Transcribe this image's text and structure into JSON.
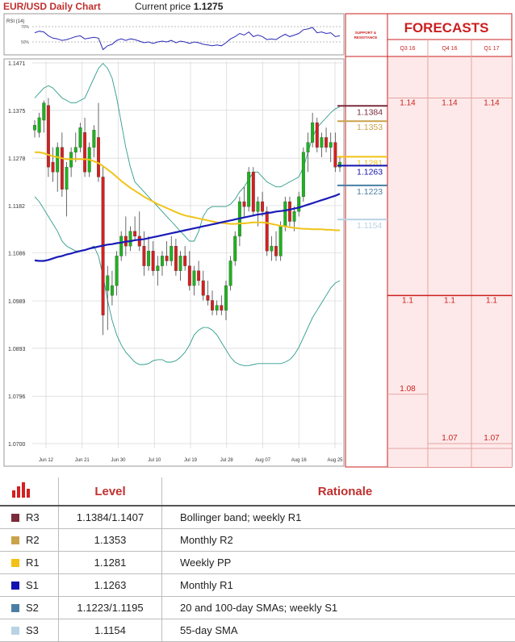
{
  "header": {
    "title": "EUR/USD Daily Chart",
    "current_price_label": "Current price",
    "current_price_value": "1.1275"
  },
  "rsi": {
    "label": "RSI (14)",
    "levels": [
      "70%",
      "50%"
    ]
  },
  "forecasts_panel": {
    "title": "FORECASTS",
    "sr_label_line1": "SUPPORT &",
    "sr_label_line2": "RESISTANCE",
    "quarters": [
      "Q3 16",
      "Q4 16",
      "Q1 17"
    ]
  },
  "colors": {
    "bullish": "#1db31d",
    "bearish": "#d42020",
    "sma_blue": "#1a1ab8",
    "sma_yellow": "#f0c419",
    "bollinger": "#2e9c8a",
    "forecast_red": "#cc1f1f",
    "r3": "#7b2b3a",
    "r2": "#c9a24a",
    "r1": "#f3c115",
    "s1": "#1212b0",
    "s2": "#4a7fa3",
    "s3": "#b9d3e6"
  },
  "chart_data": {
    "type": "candlestick",
    "title": "EUR/USD Daily Chart",
    "y_ticks": [
      "1.1471",
      "1.1375",
      "1.1278",
      "1.1182",
      "1.1086",
      "1.0989",
      "1.0893",
      "1.0796",
      "1.0700"
    ],
    "ylim": [
      1.07,
      1.1471
    ],
    "x_ticks": [
      "Jun 12",
      "Jun 21",
      "Jun 30",
      "Jul 10",
      "Jul 19",
      "Jul 28",
      "Aug 07",
      "Aug 16",
      "Aug 25"
    ],
    "candles": [
      {
        "o": 1.1335,
        "h": 1.1355,
        "l": 1.132,
        "c": 1.1345
      },
      {
        "o": 1.133,
        "h": 1.137,
        "l": 1.132,
        "c": 1.136
      },
      {
        "o": 1.1355,
        "h": 1.1395,
        "l": 1.133,
        "c": 1.139
      },
      {
        "o": 1.1385,
        "h": 1.14,
        "l": 1.124,
        "c": 1.126
      },
      {
        "o": 1.127,
        "h": 1.13,
        "l": 1.123,
        "c": 1.125
      },
      {
        "o": 1.125,
        "h": 1.131,
        "l": 1.121,
        "c": 1.13
      },
      {
        "o": 1.13,
        "h": 1.133,
        "l": 1.12,
        "c": 1.1215
      },
      {
        "o": 1.1215,
        "h": 1.127,
        "l": 1.116,
        "c": 1.126
      },
      {
        "o": 1.126,
        "h": 1.13,
        "l": 1.124,
        "c": 1.129
      },
      {
        "o": 1.129,
        "h": 1.133,
        "l": 1.127,
        "c": 1.13
      },
      {
        "o": 1.13,
        "h": 1.135,
        "l": 1.129,
        "c": 1.134
      },
      {
        "o": 1.133,
        "h": 1.136,
        "l": 1.124,
        "c": 1.125
      },
      {
        "o": 1.125,
        "h": 1.131,
        "l": 1.124,
        "c": 1.13
      },
      {
        "o": 1.13,
        "h": 1.1345,
        "l": 1.128,
        "c": 1.1335
      },
      {
        "o": 1.132,
        "h": 1.139,
        "l": 1.123,
        "c": 1.124
      },
      {
        "o": 1.124,
        "h": 1.126,
        "l": 1.092,
        "c": 1.096
      },
      {
        "o": 1.101,
        "h": 1.106,
        "l": 1.093,
        "c": 1.104
      },
      {
        "o": 1.1,
        "h": 1.105,
        "l": 1.098,
        "c": 1.102
      },
      {
        "o": 1.102,
        "h": 1.109,
        "l": 1.1,
        "c": 1.108
      },
      {
        "o": 1.108,
        "h": 1.113,
        "l": 1.107,
        "c": 1.112
      },
      {
        "o": 1.112,
        "h": 1.116,
        "l": 1.108,
        "c": 1.11
      },
      {
        "o": 1.11,
        "h": 1.114,
        "l": 1.109,
        "c": 1.113
      },
      {
        "o": 1.113,
        "h": 1.116,
        "l": 1.111,
        "c": 1.112
      },
      {
        "o": 1.112,
        "h": 1.117,
        "l": 1.109,
        "c": 1.11
      },
      {
        "o": 1.11,
        "h": 1.113,
        "l": 1.104,
        "c": 1.106
      },
      {
        "o": 1.106,
        "h": 1.112,
        "l": 1.105,
        "c": 1.109
      },
      {
        "o": 1.109,
        "h": 1.111,
        "l": 1.104,
        "c": 1.105
      },
      {
        "o": 1.105,
        "h": 1.108,
        "l": 1.102,
        "c": 1.106
      },
      {
        "o": 1.106,
        "h": 1.109,
        "l": 1.104,
        "c": 1.108
      },
      {
        "o": 1.108,
        "h": 1.111,
        "l": 1.106,
        "c": 1.107
      },
      {
        "o": 1.107,
        "h": 1.112,
        "l": 1.106,
        "c": 1.11
      },
      {
        "o": 1.11,
        "h": 1.1115,
        "l": 1.104,
        "c": 1.105
      },
      {
        "o": 1.105,
        "h": 1.109,
        "l": 1.103,
        "c": 1.108
      },
      {
        "o": 1.108,
        "h": 1.11,
        "l": 1.105,
        "c": 1.106
      },
      {
        "o": 1.106,
        "h": 1.109,
        "l": 1.101,
        "c": 1.102
      },
      {
        "o": 1.102,
        "h": 1.106,
        "l": 1.1,
        "c": 1.105
      },
      {
        "o": 1.105,
        "h": 1.107,
        "l": 1.102,
        "c": 1.103
      },
      {
        "o": 1.103,
        "h": 1.105,
        "l": 1.099,
        "c": 1.1
      },
      {
        "o": 1.1,
        "h": 1.103,
        "l": 1.098,
        "c": 1.099
      },
      {
        "o": 1.099,
        "h": 1.101,
        "l": 1.096,
        "c": 1.097
      },
      {
        "o": 1.097,
        "h": 1.099,
        "l": 1.096,
        "c": 1.098
      },
      {
        "o": 1.098,
        "h": 1.1,
        "l": 1.096,
        "c": 1.097
      },
      {
        "o": 1.097,
        "h": 1.103,
        "l": 1.095,
        "c": 1.102
      },
      {
        "o": 1.102,
        "h": 1.108,
        "l": 1.101,
        "c": 1.107
      },
      {
        "o": 1.107,
        "h": 1.113,
        "l": 1.106,
        "c": 1.112
      },
      {
        "o": 1.112,
        "h": 1.12,
        "l": 1.11,
        "c": 1.119
      },
      {
        "o": 1.119,
        "h": 1.122,
        "l": 1.116,
        "c": 1.118
      },
      {
        "o": 1.118,
        "h": 1.126,
        "l": 1.117,
        "c": 1.125
      },
      {
        "o": 1.125,
        "h": 1.126,
        "l": 1.116,
        "c": 1.117
      },
      {
        "o": 1.117,
        "h": 1.12,
        "l": 1.114,
        "c": 1.119
      },
      {
        "o": 1.119,
        "h": 1.121,
        "l": 1.116,
        "c": 1.117
      },
      {
        "o": 1.117,
        "h": 1.118,
        "l": 1.108,
        "c": 1.109
      },
      {
        "o": 1.109,
        "h": 1.112,
        "l": 1.107,
        "c": 1.11
      },
      {
        "o": 1.11,
        "h": 1.113,
        "l": 1.107,
        "c": 1.108
      },
      {
        "o": 1.108,
        "h": 1.115,
        "l": 1.107,
        "c": 1.114
      },
      {
        "o": 1.114,
        "h": 1.12,
        "l": 1.113,
        "c": 1.119
      },
      {
        "o": 1.119,
        "h": 1.12,
        "l": 1.114,
        "c": 1.115
      },
      {
        "o": 1.115,
        "h": 1.118,
        "l": 1.113,
        "c": 1.117
      },
      {
        "o": 1.117,
        "h": 1.121,
        "l": 1.116,
        "c": 1.12
      },
      {
        "o": 1.12,
        "h": 1.13,
        "l": 1.119,
        "c": 1.129
      },
      {
        "o": 1.129,
        "h": 1.133,
        "l": 1.125,
        "c": 1.131
      },
      {
        "o": 1.131,
        "h": 1.137,
        "l": 1.13,
        "c": 1.135
      },
      {
        "o": 1.135,
        "h": 1.136,
        "l": 1.129,
        "c": 1.13
      },
      {
        "o": 1.13,
        "h": 1.133,
        "l": 1.128,
        "c": 1.132
      },
      {
        "o": 1.132,
        "h": 1.134,
        "l": 1.129,
        "c": 1.13
      },
      {
        "o": 1.13,
        "h": 1.133,
        "l": 1.127,
        "c": 1.131
      },
      {
        "o": 1.131,
        "h": 1.133,
        "l": 1.125,
        "c": 1.126
      },
      {
        "o": 1.126,
        "h": 1.128,
        "l": 1.125,
        "c": 1.127
      }
    ],
    "sma_blue": [
      1.1071,
      1.107,
      1.107,
      1.1072,
      1.1075,
      1.1078,
      1.108,
      1.1083,
      1.1085,
      1.1088,
      1.109,
      1.1092,
      1.1095,
      1.1097,
      1.1099,
      1.1101,
      1.1103,
      1.1104,
      1.1106,
      1.1107,
      1.1109,
      1.111,
      1.1112,
      1.1113,
      1.1114,
      1.1116,
      1.1118,
      1.112,
      1.1122,
      1.1124,
      1.1126,
      1.1128,
      1.113,
      1.1132,
      1.1134,
      1.1136,
      1.1138,
      1.114,
      1.1142,
      1.1144,
      1.1146,
      1.1148,
      1.115,
      1.1152,
      1.1154,
      1.1156,
      1.1158,
      1.116,
      1.1162,
      1.1164,
      1.1165,
      1.1167,
      1.1168,
      1.117,
      1.1171,
      1.1172,
      1.1174,
      1.1176,
      1.1178,
      1.1181,
      1.1184,
      1.1187,
      1.119,
      1.1193,
      1.1196,
      1.1199,
      1.1202,
      1.1206
    ],
    "sma_yellow": [
      1.129,
      1.129,
      1.1288,
      1.1285,
      1.1282,
      1.128,
      1.1278,
      1.1276,
      1.1276,
      1.1276,
      1.1276,
      1.1276,
      1.1275,
      1.1272,
      1.1268,
      1.1262,
      1.1255,
      1.1248,
      1.124,
      1.1232,
      1.1225,
      1.1218,
      1.1212,
      1.1206,
      1.12,
      1.1195,
      1.119,
      1.1185,
      1.1181,
      1.1177,
      1.1173,
      1.1169,
      1.1165,
      1.1162,
      1.116,
      1.1158,
      1.1156,
      1.1154,
      1.1152,
      1.115,
      1.1148,
      1.1147,
      1.1146,
      1.1145,
      1.1145,
      1.1146,
      1.1146,
      1.1147,
      1.1148,
      1.1148,
      1.1148,
      1.1147,
      1.1145,
      1.1143,
      1.1141,
      1.114,
      1.1138,
      1.1137,
      1.1136,
      1.1135,
      1.1135,
      1.1134,
      1.1134,
      1.1134,
      1.1133,
      1.1133,
      1.1132,
      1.1132
    ],
    "bollinger_upper": [
      1.14,
      1.141,
      1.142,
      1.1425,
      1.142,
      1.141,
      1.14,
      1.1395,
      1.139,
      1.139,
      1.1395,
      1.14,
      1.142,
      1.144,
      1.146,
      1.147,
      1.146,
      1.144,
      1.14,
      1.135,
      1.13,
      1.126,
      1.123,
      1.122,
      1.121,
      1.12,
      1.119,
      1.118,
      1.117,
      1.116,
      1.115,
      1.114,
      1.113,
      1.112,
      1.111,
      1.111,
      1.113,
      1.116,
      1.1175,
      1.118,
      1.118,
      1.118,
      1.118,
      1.1185,
      1.1195,
      1.121,
      1.122,
      1.1235,
      1.125,
      1.125,
      1.124,
      1.123,
      1.1225,
      1.122,
      1.122,
      1.1225,
      1.123,
      1.1235,
      1.124,
      1.126,
      1.129,
      1.132,
      1.134,
      1.135,
      1.136,
      1.137,
      1.1378,
      1.1382
    ],
    "bollinger_lower": [
      1.12,
      1.119,
      1.1175,
      1.116,
      1.1145,
      1.113,
      1.111,
      1.11,
      1.1095,
      1.109,
      1.109,
      1.1092,
      1.1095,
      1.11,
      1.108,
      1.104,
      1.099,
      1.095,
      1.092,
      1.09,
      1.0885,
      1.0875,
      1.0865,
      1.086,
      1.086,
      1.0862,
      1.0868,
      1.087,
      1.087,
      1.0865,
      1.0865,
      1.0868,
      1.0875,
      1.0885,
      1.09,
      1.092,
      1.093,
      1.0935,
      1.0935,
      1.093,
      1.092,
      1.0905,
      1.089,
      1.0875,
      1.0865,
      1.086,
      1.0858,
      1.0858,
      1.086,
      1.0862,
      1.0862,
      1.0862,
      1.0862,
      1.0862,
      1.0862,
      1.0865,
      1.087,
      1.088,
      1.0895,
      1.0915,
      1.0935,
      1.0955,
      1.097,
      1.0985,
      1.1,
      1.1015,
      1.1025,
      1.103
    ],
    "levels": [
      {
        "code": "R3",
        "value": "1.1384",
        "color_key": "r3"
      },
      {
        "code": "R2",
        "value": "1.1353",
        "color_key": "r2"
      },
      {
        "code": "R1",
        "value": "1.1281",
        "color_key": "r1"
      },
      {
        "code": "S1",
        "value": "1.1263",
        "color_key": "s1"
      },
      {
        "code": "S2",
        "value": "1.1223",
        "color_key": "s2"
      },
      {
        "code": "S3",
        "value": "1.1154",
        "color_key": "s3"
      }
    ],
    "forecasts": {
      "Q3 16": [
        1.14,
        1.1,
        1.08
      ],
      "Q4 16": [
        1.14,
        1.1,
        1.07
      ],
      "Q1 17": [
        1.14,
        1.1,
        1.07
      ]
    },
    "forecast_labels": {
      "Q3 16": [
        "1.14",
        "1.1",
        "1.08"
      ],
      "Q4 16": [
        "1.14",
        "1.1",
        "1.07"
      ],
      "Q1 17": [
        "1.14",
        "1.1",
        "1.07"
      ]
    },
    "rsi_values": [
      62,
      64,
      63,
      58,
      55,
      54,
      52,
      53,
      55,
      57,
      58,
      54,
      55,
      56,
      55,
      40,
      45,
      47,
      52,
      54,
      52,
      54,
      53,
      51,
      49,
      50,
      48,
      50,
      51,
      50,
      52,
      49,
      51,
      50,
      48,
      50,
      49,
      47,
      46,
      45,
      46,
      45,
      49,
      54,
      57,
      61,
      59,
      63,
      57,
      59,
      57,
      53,
      54,
      53,
      57,
      60,
      57,
      59,
      61,
      66,
      67,
      69,
      62,
      63,
      61,
      62,
      57,
      58
    ]
  },
  "table": {
    "headers": {
      "level": "Level",
      "rationale": "Rationale"
    },
    "rows": [
      {
        "code": "R3",
        "level": "1.1384/1.1407",
        "rationale": "Bollinger band; weekly R1",
        "color": "#7b2b3a"
      },
      {
        "code": "R2",
        "level": "1.1353",
        "rationale": "Monthly R2",
        "color": "#c9a24a"
      },
      {
        "code": "R1",
        "level": "1.1281",
        "rationale": "Weekly PP",
        "color": "#f3c115"
      },
      {
        "code": "S1",
        "level": "1.1263",
        "rationale": "Monthly R1",
        "color": "#1212b0"
      },
      {
        "code": "S2",
        "level": "1.1223/1.1195",
        "rationale": "20 and 100-day SMAs; weekly S1",
        "color": "#4a7fa3"
      },
      {
        "code": "S3",
        "level": "1.1154",
        "rationale": "55-day SMA",
        "color": "#b9d3e6"
      }
    ]
  }
}
